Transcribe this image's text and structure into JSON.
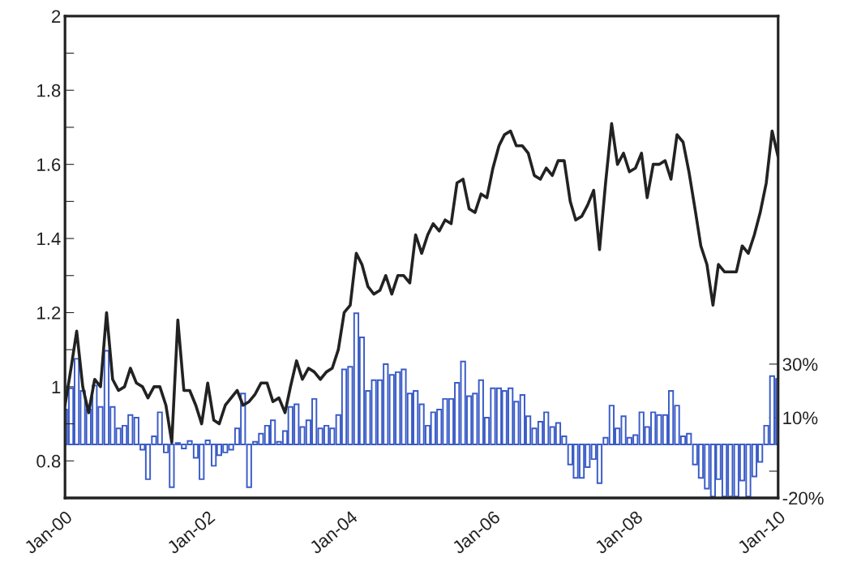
{
  "chart_data": {
    "type": "line",
    "x": [
      "2000-01",
      "2000-02",
      "2000-03",
      "2000-04",
      "2000-05",
      "2000-06",
      "2000-07",
      "2000-08",
      "2000-09",
      "2000-10",
      "2000-11",
      "2000-12",
      "2001-01",
      "2001-02",
      "2001-03",
      "2001-04",
      "2001-05",
      "2001-06",
      "2001-07",
      "2001-08",
      "2001-09",
      "2001-10",
      "2001-11",
      "2001-12",
      "2002-01",
      "2002-02",
      "2002-03",
      "2002-04",
      "2002-05",
      "2002-06",
      "2002-07",
      "2002-08",
      "2002-09",
      "2002-10",
      "2002-11",
      "2002-12",
      "2003-01",
      "2003-02",
      "2003-03",
      "2003-04",
      "2003-05",
      "2003-06",
      "2003-07",
      "2003-08",
      "2003-09",
      "2003-10",
      "2003-11",
      "2003-12",
      "2004-01",
      "2004-02",
      "2004-03",
      "2004-04",
      "2004-05",
      "2004-06",
      "2004-07",
      "2004-08",
      "2004-09",
      "2004-10",
      "2004-11",
      "2004-12",
      "2005-01",
      "2005-02",
      "2005-03",
      "2005-04",
      "2005-05",
      "2005-06",
      "2005-07",
      "2005-08",
      "2005-09",
      "2005-10",
      "2005-11",
      "2005-12",
      "2006-01",
      "2006-02",
      "2006-03",
      "2006-04",
      "2006-05",
      "2006-06",
      "2006-07",
      "2006-08",
      "2006-09",
      "2006-10",
      "2006-11",
      "2006-12",
      "2007-01",
      "2007-02",
      "2007-03",
      "2007-04",
      "2007-05",
      "2007-06",
      "2007-07",
      "2007-08",
      "2007-09",
      "2007-10",
      "2007-11",
      "2007-12",
      "2008-01",
      "2008-02",
      "2008-03",
      "2008-04",
      "2008-05",
      "2008-06",
      "2008-07",
      "2008-08",
      "2008-09",
      "2008-10",
      "2008-11",
      "2008-12",
      "2009-01",
      "2009-02",
      "2009-03",
      "2009-04",
      "2009-05",
      "2009-06",
      "2009-07",
      "2009-08",
      "2009-09",
      "2009-10",
      "2009-11",
      "2009-12",
      "2010-01"
    ],
    "series": [
      {
        "color": "#222222",
        "values": [
          0.95,
          1.05,
          1.15,
          1.0,
          0.93,
          1.02,
          1.0,
          1.2,
          1.02,
          0.99,
          1.0,
          1.05,
          1.01,
          1.0,
          0.97,
          1.0,
          1.0,
          0.95,
          0.85,
          1.18,
          0.99,
          0.99,
          0.95,
          0.9,
          1.01,
          0.91,
          0.9,
          0.95,
          0.97,
          0.99,
          0.95,
          0.96,
          0.98,
          1.01,
          1.01,
          0.96,
          0.97,
          0.93,
          1.0,
          1.07,
          1.02,
          1.05,
          1.04,
          1.02,
          1.04,
          1.05,
          1.1,
          1.2,
          1.22,
          1.36,
          1.33,
          1.27,
          1.25,
          1.26,
          1.3,
          1.25,
          1.3,
          1.3,
          1.28,
          1.41,
          1.36,
          1.41,
          1.44,
          1.42,
          1.45,
          1.44,
          1.55,
          1.56,
          1.48,
          1.47,
          1.52,
          1.51,
          1.59,
          1.65,
          1.68,
          1.69,
          1.65,
          1.65,
          1.63,
          1.57,
          1.56,
          1.59,
          1.57,
          1.61,
          1.61,
          1.5,
          1.45,
          1.46,
          1.49,
          1.53,
          1.37,
          1.55,
          1.71,
          1.6,
          1.63,
          1.58,
          1.59,
          1.63,
          1.51,
          1.6,
          1.6,
          1.61,
          1.56,
          1.68,
          1.66,
          1.58,
          1.48,
          1.38,
          1.33,
          1.22,
          1.33,
          1.31,
          1.31,
          1.31,
          1.38,
          1.36,
          1.41,
          1.47,
          1.55,
          1.69,
          1.62
        ]
      },
      {
        "type": "bar",
        "axis": "y2",
        "color": "#3a5bc7",
        "values": [
          13,
          21,
          32,
          20,
          13,
          22,
          14,
          35,
          14,
          6,
          7,
          11,
          10,
          -2,
          -13,
          3,
          12,
          -3,
          -16,
          0.5,
          -1.5,
          1.3,
          -5,
          -13,
          1.5,
          -8,
          -4,
          -3,
          -2,
          6,
          19,
          -16,
          1,
          4,
          7,
          9,
          1,
          5,
          14,
          15,
          6.5,
          9,
          17,
          6,
          7,
          6,
          11,
          28,
          29,
          49,
          40,
          20,
          24,
          24,
          30,
          26,
          27,
          28,
          19,
          20,
          15,
          7,
          12,
          13,
          17,
          17,
          23,
          31,
          18,
          19,
          24,
          10,
          21,
          21,
          20,
          21,
          16,
          18.5,
          10.5,
          6,
          8.5,
          12,
          6.5,
          8,
          3,
          -7.5,
          -12.5,
          -12.5,
          -8.5,
          -5.5,
          -14.5,
          2.5,
          14.5,
          6,
          10.5,
          2.5,
          3.5,
          12,
          6.5,
          12,
          11,
          11,
          20,
          14.5,
          3,
          4,
          -7.5,
          -12.5,
          -16.5,
          -19.5,
          -13,
          -19.5,
          -19.5,
          -19.5,
          -13.5,
          -19.5,
          -12,
          -6.5,
          7,
          25.5,
          24.5
        ]
      }
    ],
    "xlim": [
      "2000-01",
      "2010-01"
    ],
    "xticks": [
      {
        "value": "2000-01",
        "label": "Jan-00"
      },
      {
        "value": "2002-01",
        "label": "Jan-02"
      },
      {
        "value": "2004-01",
        "label": "Jan-04"
      },
      {
        "value": "2006-01",
        "label": "Jan-06"
      },
      {
        "value": "2008-01",
        "label": "Jan-08"
      },
      {
        "value": "2010-01",
        "label": "Jan-10"
      }
    ],
    "ylim": [
      0.7,
      2
    ],
    "yticks": [
      {
        "value": 0.8,
        "label": "0.8"
      },
      {
        "value": 0.9,
        "label": null
      },
      {
        "value": 1,
        "label": "1"
      },
      {
        "value": 1.1,
        "label": null
      },
      {
        "value": 1.2,
        "label": "1.2"
      },
      {
        "value": 1.3,
        "label": null
      },
      {
        "value": 1.4,
        "label": "1.4"
      },
      {
        "value": 1.5,
        "label": null
      },
      {
        "value": 1.6,
        "label": "1.6"
      },
      {
        "value": 1.7,
        "label": null
      },
      {
        "value": 1.8,
        "label": "1.8"
      },
      {
        "value": 1.9,
        "label": null
      },
      {
        "value": 2,
        "label": "2"
      }
    ],
    "y2lim": [
      -20,
      160
    ],
    "y2ticks": [
      {
        "value": 30,
        "label": "30%"
      },
      {
        "value": 10,
        "label": "10%"
      },
      {
        "value": -10,
        "label": null
      },
      {
        "value": -20,
        "label": "-20%"
      }
    ]
  }
}
